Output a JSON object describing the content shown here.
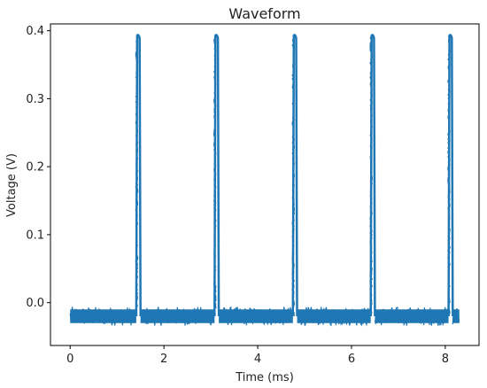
{
  "chart_data": {
    "type": "line",
    "title": "Waveform",
    "xlabel": "Time (ms)",
    "ylabel": "Voltage (V)",
    "xlim": [
      -0.42,
      8.72
    ],
    "ylim": [
      -0.063,
      0.41
    ],
    "xticks": [
      0,
      2,
      4,
      6,
      8
    ],
    "xtick_labels": [
      "0",
      "2",
      "4",
      "6",
      "8"
    ],
    "yticks": [
      0.0,
      0.1,
      0.2,
      0.3,
      0.4
    ],
    "ytick_labels": [
      "0.0",
      "0.1",
      "0.2",
      "0.3",
      "0.4"
    ],
    "grid": false,
    "line_color": "#1f77b4",
    "series": [
      {
        "baseline": -0.02,
        "noise_band": [
          -0.034,
          -0.006
        ],
        "peak": 0.393,
        "x_start": 0.0,
        "x_end": 8.3,
        "pulse_starts": [
          1.41,
          3.08,
          4.75,
          6.41,
          8.07
        ],
        "pulse_width": 0.09,
        "x": [
          0.0,
          1.4,
          1.43,
          1.48,
          1.51,
          3.07,
          3.09,
          3.14,
          3.18,
          4.74,
          4.76,
          4.81,
          4.85,
          6.4,
          6.42,
          6.47,
          6.51,
          8.06,
          8.08,
          8.14,
          8.18,
          8.3
        ],
        "y": [
          -0.02,
          -0.02,
          0.393,
          0.393,
          -0.02,
          -0.02,
          0.393,
          0.393,
          -0.02,
          -0.02,
          0.393,
          0.393,
          -0.02,
          -0.02,
          0.393,
          0.393,
          -0.02,
          -0.02,
          0.393,
          0.393,
          -0.02,
          -0.02
        ]
      }
    ]
  }
}
